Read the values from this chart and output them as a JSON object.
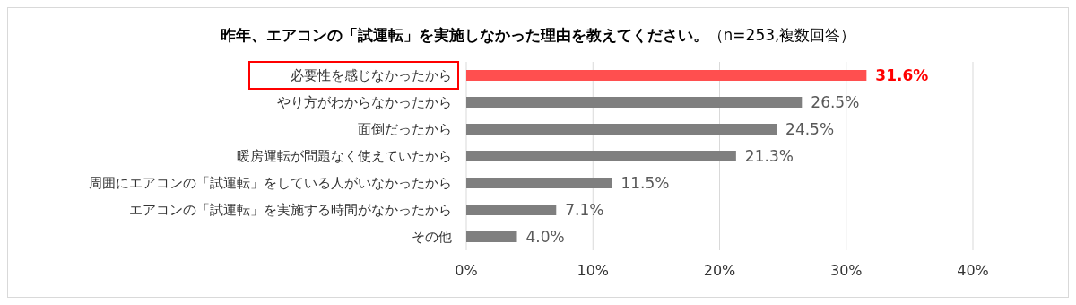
{
  "chart_data": {
    "type": "bar",
    "orientation": "horizontal",
    "title": "昨年、エアコンの「試運転」を実施しなかった理由を教えてください。",
    "subtitle": "（n=253,複数回答）",
    "categories": [
      "必要性を感じなかったから",
      "やり方がわからなかったから",
      "面倒だったから",
      "暖房運転が問題なく使えていたから",
      "周囲にエアコンの「試運転」をしている人がいなかったから",
      "エアコンの「試運転」を実施する時間がなかったから",
      "その他"
    ],
    "values": [
      31.6,
      26.5,
      24.5,
      21.3,
      11.5,
      7.1,
      4.0
    ],
    "colors": [
      "#ff4f4f",
      "#7f7f7f",
      "#7f7f7f",
      "#7f7f7f",
      "#7f7f7f",
      "#7f7f7f",
      "#7f7f7f"
    ],
    "value_labels": [
      "31.6%",
      "26.5%",
      "24.5%",
      "21.3%",
      "11.5%",
      "7.1%",
      "4.0%"
    ],
    "xlim": [
      0,
      40
    ],
    "xticks": [
      {
        "value": 0,
        "label": "0%"
      },
      {
        "value": 10,
        "label": "10%"
      },
      {
        "value": 20,
        "label": "20%"
      },
      {
        "value": 30,
        "label": "30%"
      },
      {
        "value": 40,
        "label": "40%"
      }
    ],
    "grid": "x"
  }
}
